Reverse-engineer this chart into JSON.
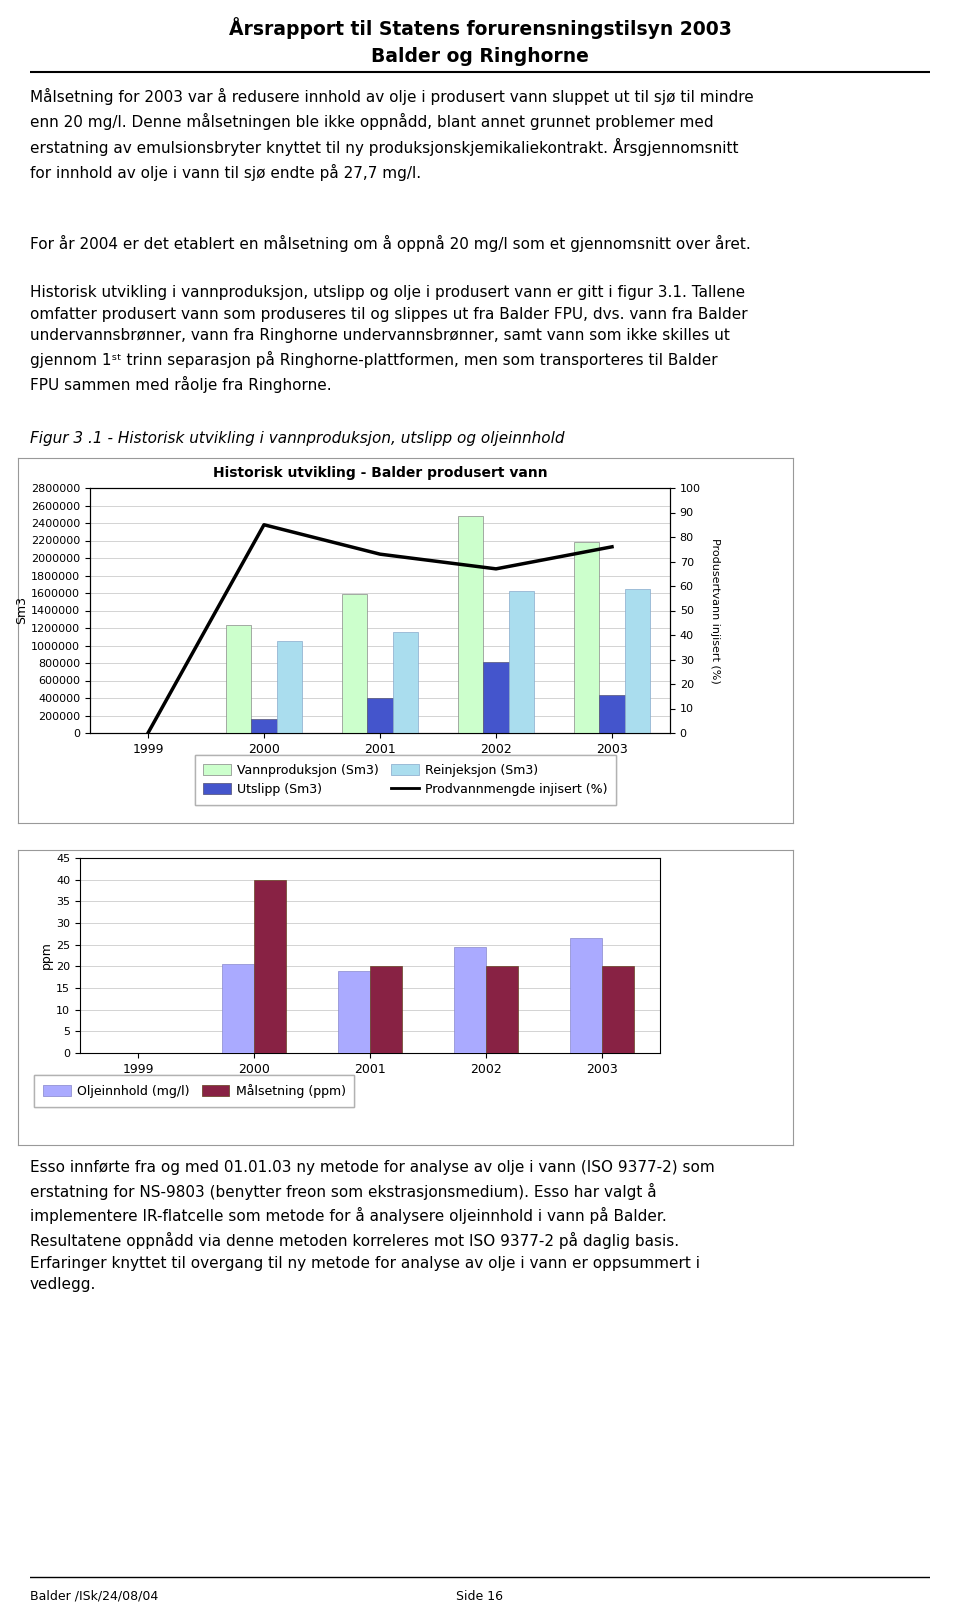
{
  "title_line1": "Årsrapport til Statens forurensningstilsyn 2003",
  "title_line2": "Balder og Ringhorne",
  "fig_caption": "Figur 3 .1 - Historisk utvikling i vannproduksjon, utslipp og oljeinnhold",
  "chart1_title": "Historisk utvikling - Balder produsert vann",
  "years": [
    1999,
    2000,
    2001,
    2002,
    2003
  ],
  "vannproduksjon": [
    0,
    1230000,
    1590000,
    2480000,
    2180000
  ],
  "utslipp": [
    0,
    155000,
    400000,
    810000,
    430000
  ],
  "reinjeksjon": [
    0,
    1050000,
    1150000,
    1620000,
    1650000
  ],
  "prodvann_pct": [
    0,
    85,
    73,
    67,
    76
  ],
  "olje_mgl": [
    0,
    20.5,
    19.0,
    24.5,
    26.5
  ],
  "malsetning_ppm": [
    0,
    40,
    20,
    20,
    20
  ],
  "footer_left": "Balder /ISk/24/08/04",
  "footer_right": "Side 16",
  "color_vannprod": "#ccffcc",
  "color_utslipp": "#4455cc",
  "color_reinjeksjon": "#aaddee",
  "color_olje": "#aaaaff",
  "color_malsetning": "#882244",
  "bg_chart": "#ffffff",
  "grid_color": "#cccccc"
}
